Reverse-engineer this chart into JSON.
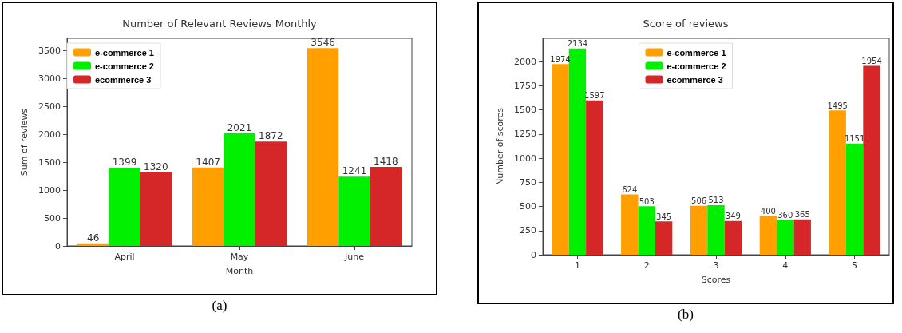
{
  "chart_data": [
    {
      "type": "bar",
      "title": "Number of Relevant Reviews Monthly",
      "xlabel": "Month",
      "ylabel": "Sum of reviews",
      "categories": [
        "April",
        "May",
        "June"
      ],
      "series": [
        {
          "name": "e-commerce 1",
          "color": "#ffa000",
          "values": [
            46,
            1407,
            3546
          ]
        },
        {
          "name": "e-commerce 2",
          "color": "#00f000",
          "values": [
            1399,
            2021,
            1241
          ]
        },
        {
          "name": "ecommerce 3",
          "color": "#d62728",
          "values": [
            1320,
            1872,
            1418
          ]
        }
      ],
      "ylim": [
        0,
        3720
      ],
      "yticks": [
        0,
        500,
        1000,
        1500,
        2000,
        2500,
        3000,
        3500
      ],
      "data_labels": true,
      "grid": false,
      "legend": "top left",
      "annotations": [
        "(a)"
      ]
    },
    {
      "type": "bar",
      "title": "Score of reviews",
      "xlabel": "Scores",
      "ylabel": "Number of scores",
      "categories": [
        "1",
        "2",
        "3",
        "4",
        "5"
      ],
      "series": [
        {
          "name": "e-commerce 1",
          "color": "#ffa000",
          "values": [
            1974,
            624,
            506,
            400,
            1495
          ]
        },
        {
          "name": "e-commerce 2",
          "color": "#00f000",
          "values": [
            2134,
            503,
            513,
            360,
            1151
          ]
        },
        {
          "name": "ecommerce 3",
          "color": "#d62728",
          "values": [
            1597,
            345,
            349,
            365,
            1954
          ]
        }
      ],
      "ylim": [
        0,
        2240
      ],
      "yticks": [
        0,
        250,
        500,
        750,
        1000,
        1250,
        1500,
        1750,
        2000
      ],
      "data_labels": true,
      "grid": false,
      "legend": "top",
      "annotations": [
        "(b)"
      ]
    }
  ]
}
